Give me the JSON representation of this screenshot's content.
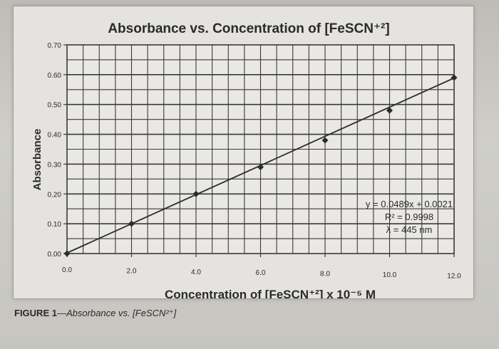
{
  "caption": {
    "figure_label": "FIGURE 1",
    "text": "Absorbance vs. [FeSCN²⁺]"
  },
  "chart_data": {
    "type": "scatter",
    "title": "Absorbance vs. Concentration of [FeSCN⁺²]",
    "xlabel": "Concentration of [FeSCN⁺²] x 10⁻⁵ M",
    "ylabel": "Absorbance",
    "xlim": [
      0,
      12
    ],
    "ylim": [
      0,
      0.7
    ],
    "x_ticks": [
      "0.0",
      "2.0",
      "4.0",
      "6.0",
      "8.0",
      "10.0",
      "12.0"
    ],
    "y_ticks": [
      "0.00",
      "0.10",
      "0.20",
      "0.30",
      "0.40",
      "0.50",
      "0.60",
      "0.70"
    ],
    "grid": true,
    "series": [
      {
        "x": [
          0,
          2,
          4,
          6,
          8,
          10,
          12
        ],
        "y": [
          0.0,
          0.1,
          0.2,
          0.29,
          0.38,
          0.48,
          0.59
        ],
        "color": "#2b2b2b"
      }
    ],
    "trendline": {
      "slope": 0.0489,
      "intercept": 0.0021,
      "color": "#2b2b2b"
    },
    "annotations": [
      "y = 0.0489x + 0.0021",
      "R² = 0.9998",
      "λ = 445 nm"
    ]
  }
}
